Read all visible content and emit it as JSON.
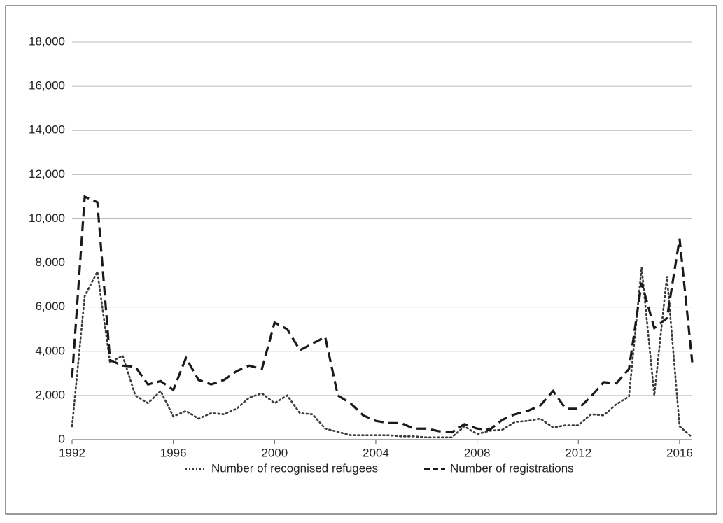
{
  "chart_data": {
    "type": "line",
    "x": [
      1992,
      1992.5,
      1993,
      1993.5,
      1994,
      1994.5,
      1995,
      1995.5,
      1996,
      1996.5,
      1997,
      1997.5,
      1998,
      1998.5,
      1999,
      1999.5,
      2000,
      2000.5,
      2001,
      2001.5,
      2002,
      2002.5,
      2003,
      2003.5,
      2004,
      2004.5,
      2005,
      2005.5,
      2006,
      2006.5,
      2007,
      2007.5,
      2008,
      2008.5,
      2009,
      2009.5,
      2010,
      2010.5,
      2011,
      2011.5,
      2012,
      2012.5,
      2013,
      2013.5,
      2014,
      2014.5,
      2015,
      2015.5,
      2016,
      2016.5
    ],
    "series": [
      {
        "name": "Number of recognised refugees",
        "color": "#3a3a3a",
        "line_style": "dotted",
        "values": [
          600,
          6500,
          7600,
          3500,
          3800,
          2000,
          1650,
          2200,
          1050,
          1300,
          950,
          1200,
          1150,
          1400,
          1900,
          2100,
          1650,
          2000,
          1200,
          1150,
          500,
          350,
          200,
          200,
          200,
          200,
          150,
          150,
          100,
          100,
          100,
          600,
          250,
          400,
          450,
          800,
          850,
          950,
          550,
          650,
          650,
          1150,
          1100,
          1600,
          1950,
          7800,
          2000,
          7400,
          600,
          100
        ]
      },
      {
        "name": "Number of registrations",
        "color": "#1a1a1a",
        "line_style": "dashed",
        "values": [
          2800,
          11000,
          10750,
          3600,
          3350,
          3300,
          2500,
          2650,
          2250,
          3700,
          2700,
          2500,
          2700,
          3100,
          3350,
          3200,
          5300,
          5000,
          4050,
          4350,
          4650,
          2000,
          1650,
          1100,
          850,
          750,
          750,
          500,
          500,
          380,
          330,
          700,
          500,
          450,
          900,
          1150,
          1300,
          1550,
          2200,
          1400,
          1400,
          1950,
          2600,
          2550,
          3200,
          7100,
          5050,
          5500,
          9100,
          3500
        ]
      }
    ],
    "xlim": [
      1992,
      2016.5
    ],
    "xticks": [
      1992,
      1996,
      2000,
      2004,
      2008,
      2012,
      2016
    ],
    "ylim": [
      0,
      18000
    ],
    "yticks": [
      0,
      {
        "value": 2000,
        "label": "2,000"
      },
      {
        "value": 4000,
        "label": "4,000"
      },
      {
        "value": 6000,
        "label": "6,000"
      },
      {
        "value": 8000,
        "label": "8,000"
      },
      {
        "value": 10000,
        "label": "10,000"
      },
      {
        "value": 12000,
        "label": "12,000"
      },
      {
        "value": 14000,
        "label": "14,000"
      },
      {
        "value": 16000,
        "label": "16,000"
      },
      {
        "value": 18000,
        "label": "18,000"
      }
    ],
    "grid": true
  }
}
